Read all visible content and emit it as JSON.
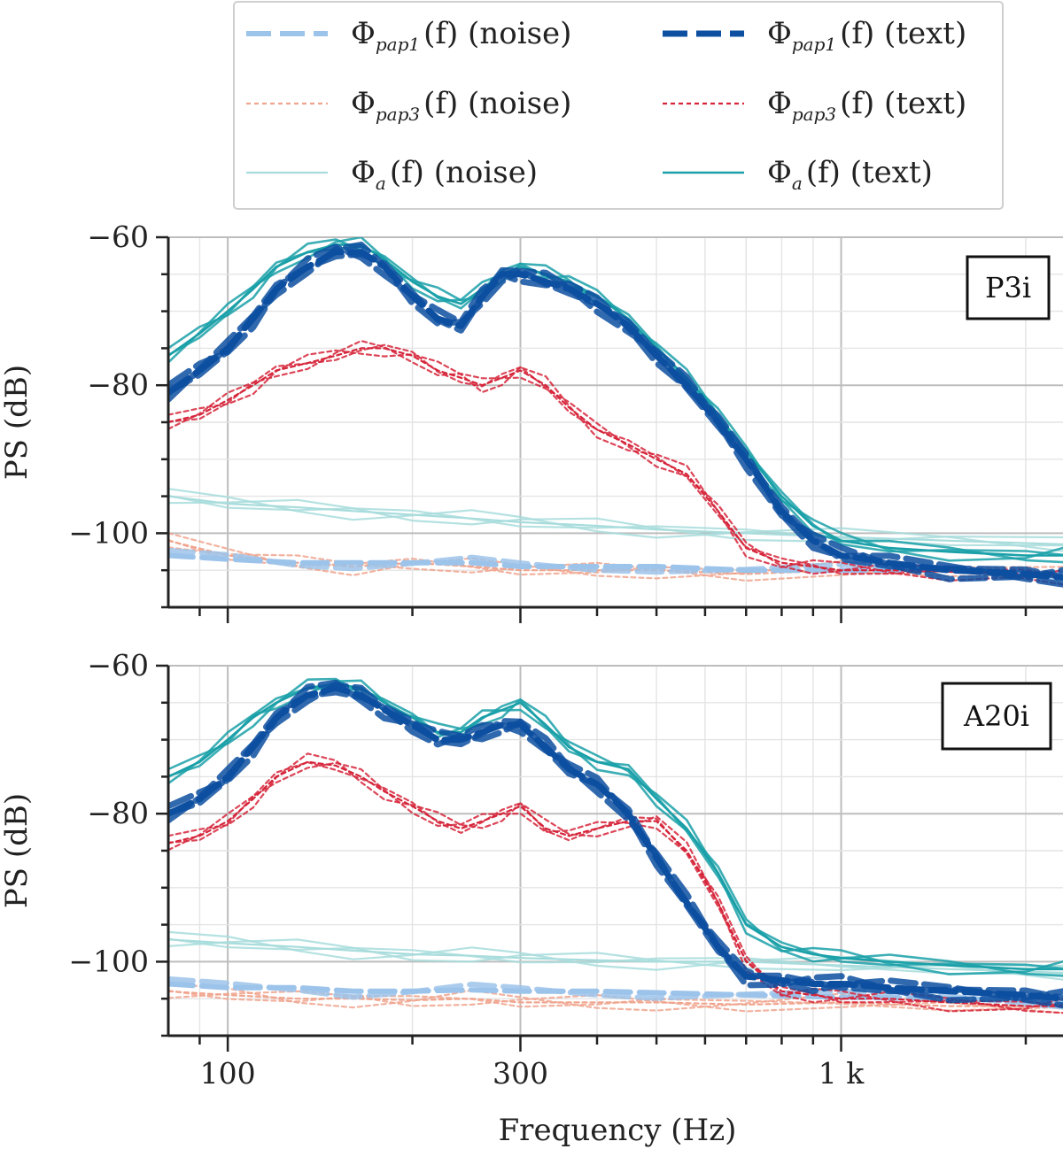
{
  "chart_data": {
    "type": "line",
    "xlabel": "Frequency (Hz)",
    "ylabel": "PS (dB)",
    "xscale": "log",
    "xlim": [
      80,
      2300
    ],
    "ylim": [
      -110,
      -60
    ],
    "x_ticks": [
      100,
      300,
      1000
    ],
    "x_tick_labels": [
      "100",
      "300",
      "1 k"
    ],
    "y_ticks": [
      -60,
      -80,
      -100
    ],
    "y_tick_labels": [
      "−60",
      "−80",
      "−100"
    ],
    "grid": true,
    "legend": {
      "placement": "top-center",
      "entries": [
        {
          "key": "pap1_noise",
          "phi": "Φ",
          "sub": "pap1",
          "text": "(f) (noise)",
          "color": "#9cc3ea",
          "style": "dashed-thick"
        },
        {
          "key": "pap1_text",
          "phi": "Φ",
          "sub": "pap1",
          "text": "(f) (text)",
          "color": "#0d4fa0",
          "style": "dashed-thick"
        },
        {
          "key": "pap3_noise",
          "phi": "Φ",
          "sub": "pap3",
          "text": "(f) (noise)",
          "color": "#f0a58e",
          "style": "dotted"
        },
        {
          "key": "pap3_text",
          "phi": "Φ",
          "sub": "pap3",
          "text": "(f) (text)",
          "color": "#d6253a",
          "style": "dotted"
        },
        {
          "key": "a_noise",
          "phi": "Φ",
          "sub": "a",
          "text": "(f) (noise)",
          "color": "#a8dcdc",
          "style": "solid"
        },
        {
          "key": "a_text",
          "phi": "Φ",
          "sub": "a",
          "text": "(f) (text)",
          "color": "#1aa0a8",
          "style": "solid"
        }
      ]
    },
    "panels": [
      {
        "label": "P3i",
        "series": [
          {
            "key": "a_text",
            "x": [
              80,
              90,
              100,
              110,
              120,
              135,
              150,
              165,
              180,
              200,
              220,
              240,
              260,
              280,
              300,
              330,
              360,
              400,
              450,
              500,
              560,
              630,
              700,
              800,
              900,
              1000,
              1200,
              1500,
              2000,
              2300
            ],
            "y": [
              -76,
              -73,
              -70,
              -67,
              -64,
              -62,
              -61,
              -61,
              -63,
              -66,
              -68,
              -69,
              -67,
              -65,
              -64,
              -65,
              -66,
              -68,
              -71,
              -75,
              -79,
              -84,
              -89,
              -95,
              -99,
              -101,
              -102,
              -102.5,
              -103,
              -103
            ]
          },
          {
            "key": "pap1_text",
            "x": [
              80,
              90,
              100,
              110,
              120,
              135,
              150,
              165,
              180,
              200,
              220,
              240,
              260,
              280,
              300,
              330,
              360,
              400,
              450,
              500,
              560,
              630,
              700,
              800,
              900,
              1000,
              1200,
              1500,
              2000,
              2300
            ],
            "y": [
              -81,
              -78,
              -75,
              -71,
              -67,
              -64,
              -62,
              -62,
              -64,
              -68,
              -71,
              -72,
              -68,
              -65,
              -65,
              -66,
              -67,
              -69,
              -72,
              -76,
              -80,
              -85,
              -90,
              -97,
              -101,
              -103,
              -104,
              -105,
              -105.5,
              -106
            ]
          },
          {
            "key": "pap3_text",
            "x": [
              80,
              90,
              100,
              110,
              120,
              135,
              150,
              165,
              180,
              200,
              220,
              240,
              260,
              280,
              300,
              330,
              360,
              400,
              450,
              500,
              560,
              630,
              700,
              800,
              900,
              1000,
              1200,
              1500,
              2000,
              2300
            ],
            "y": [
              -85,
              -84,
              -82,
              -80,
              -78,
              -77,
              -76,
              -75,
              -75,
              -76,
              -78,
              -79,
              -80,
              -79,
              -78,
              -80,
              -83,
              -86,
              -88,
              -90,
              -92,
              -97,
              -102,
              -104,
              -104.5,
              -105,
              -105,
              -105.2,
              -105.5,
              -106
            ]
          },
          {
            "key": "a_noise",
            "x": [
              80,
              100,
              130,
              160,
              200,
              250,
              300,
              400,
              500,
              700,
              1000,
              1500,
              2300
            ],
            "y": [
              -95,
              -96,
              -96.5,
              -97,
              -97.5,
              -98,
              -98.5,
              -99,
              -99.5,
              -100,
              -100.5,
              -101,
              -101.5
            ]
          },
          {
            "key": "pap1_noise",
            "x": [
              80,
              100,
              130,
              160,
              200,
              250,
              300,
              400,
              500,
              700,
              1000,
              1500,
              2300
            ],
            "y": [
              -103,
              -103.5,
              -104,
              -104,
              -104,
              -104,
              -104.5,
              -104.5,
              -104.5,
              -105,
              -105,
              -105,
              -105.5
            ]
          },
          {
            "key": "pap3_noise",
            "x": [
              80,
              100,
              130,
              160,
              200,
              250,
              300,
              400,
              500,
              700,
              1000,
              1500,
              2300
            ],
            "y": [
              -101,
              -103,
              -104,
              -104.5,
              -104,
              -104.5,
              -105,
              -105,
              -105,
              -105.5,
              -105,
              -105.2,
              -105.5
            ]
          }
        ]
      },
      {
        "label": "A20i",
        "series": [
          {
            "key": "a_text",
            "x": [
              80,
              90,
              100,
              110,
              120,
              135,
              150,
              165,
              180,
              200,
              220,
              240,
              260,
              280,
              300,
              330,
              360,
              400,
              450,
              500,
              560,
              630,
              700,
              800,
              900,
              1000,
              1200,
              1500,
              2000,
              2300
            ],
            "y": [
              -75,
              -73,
              -70,
              -67,
              -65,
              -63,
              -62.5,
              -63,
              -65,
              -67,
              -69,
              -69,
              -67,
              -66,
              -65,
              -68,
              -71,
              -73,
              -74,
              -78,
              -82,
              -88,
              -95,
              -98,
              -99,
              -99.5,
              -100,
              -100.5,
              -101,
              -101
            ]
          },
          {
            "key": "pap1_text",
            "x": [
              80,
              90,
              100,
              110,
              120,
              135,
              150,
              165,
              180,
              200,
              220,
              240,
              260,
              280,
              300,
              330,
              360,
              400,
              450,
              500,
              560,
              630,
              700,
              800,
              900,
              1000,
              1200,
              1500,
              2000,
              2300
            ],
            "y": [
              -80,
              -78,
              -75,
              -71,
              -67,
              -64,
              -63,
              -64,
              -66,
              -68,
              -70,
              -70,
              -69,
              -68,
              -68,
              -71,
              -74,
              -76,
              -80,
              -86,
              -92,
              -98,
              -102,
              -102.5,
              -103,
              -103,
              -103.5,
              -104,
              -104.5,
              -105
            ]
          },
          {
            "key": "pap3_text",
            "x": [
              80,
              90,
              100,
              110,
              120,
              135,
              150,
              165,
              180,
              200,
              220,
              240,
              260,
              280,
              300,
              330,
              360,
              400,
              450,
              500,
              560,
              630,
              700,
              800,
              900,
              1000,
              1200,
              1500,
              2000,
              2300
            ],
            "y": [
              -84,
              -83,
              -81,
              -78,
              -75,
              -73,
              -73.5,
              -75,
              -77,
              -79,
              -81,
              -82,
              -81,
              -80,
              -79,
              -82,
              -83,
              -82,
              -81,
              -81,
              -85,
              -92,
              -100,
              -104,
              -104.5,
              -105,
              -105,
              -105.5,
              -106,
              -106
            ]
          },
          {
            "key": "a_noise",
            "x": [
              80,
              100,
              130,
              160,
              200,
              250,
              300,
              400,
              500,
              700,
              1000,
              1500,
              2300
            ],
            "y": [
              -97,
              -97.5,
              -98,
              -98.5,
              -99,
              -99.2,
              -99.5,
              -99.8,
              -100,
              -100,
              -100.5,
              -101,
              -101.5
            ]
          },
          {
            "key": "pap1_noise",
            "x": [
              80,
              100,
              130,
              160,
              200,
              250,
              300,
              400,
              500,
              700,
              1000,
              1500,
              2300
            ],
            "y": [
              -103,
              -103.5,
              -103.5,
              -104,
              -104,
              -103.8,
              -104,
              -104,
              -104.2,
              -104.5,
              -104.8,
              -105,
              -105.5
            ]
          },
          {
            "key": "pap3_noise",
            "x": [
              80,
              100,
              130,
              160,
              200,
              250,
              300,
              400,
              500,
              700,
              1000,
              1500,
              2300
            ],
            "y": [
              -104,
              -104.5,
              -105,
              -105,
              -105.2,
              -105,
              -105.5,
              -105.5,
              -105.5,
              -105.8,
              -105.5,
              -106,
              -106
            ]
          }
        ]
      }
    ]
  }
}
